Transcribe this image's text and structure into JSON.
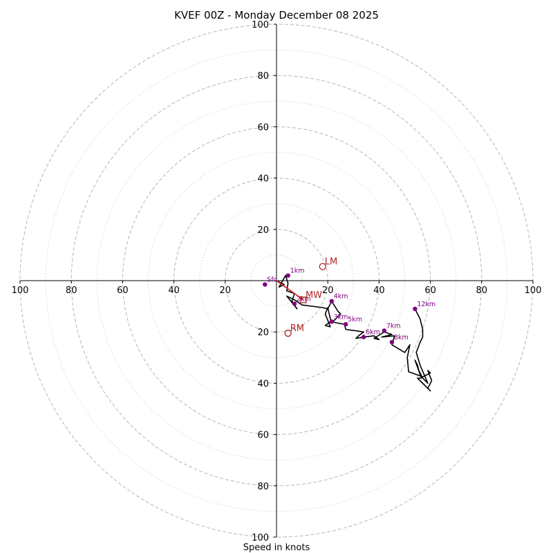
{
  "chart_data": {
    "type": "hodograph",
    "title": "KVEF 00Z - Monday December 08 2025",
    "xlabel": "Speed in knots",
    "xlim": [
      -100,
      100
    ],
    "ylim": [
      -100,
      100
    ],
    "major_rings": [
      20,
      40,
      60,
      80,
      100
    ],
    "minor_rings": [
      10,
      30,
      50,
      70,
      90
    ],
    "x_ticks": [
      {
        "value": -100,
        "label": "100"
      },
      {
        "value": -80,
        "label": "80"
      },
      {
        "value": -60,
        "label": "60"
      },
      {
        "value": -40,
        "label": "40"
      },
      {
        "value": -20,
        "label": "20"
      },
      {
        "value": 20,
        "label": "20"
      },
      {
        "value": 40,
        "label": "40"
      },
      {
        "value": 60,
        "label": "60"
      },
      {
        "value": 80,
        "label": "80"
      },
      {
        "value": 100,
        "label": "100"
      }
    ],
    "y_ticks": [
      {
        "value": 100,
        "label": "100"
      },
      {
        "value": 80,
        "label": "80"
      },
      {
        "value": 60,
        "label": "60"
      },
      {
        "value": 40,
        "label": "40"
      },
      {
        "value": 20,
        "label": "20"
      },
      {
        "value": -20,
        "label": "20"
      },
      {
        "value": -40,
        "label": "40"
      },
      {
        "value": -60,
        "label": "60"
      },
      {
        "value": -80,
        "label": "80"
      },
      {
        "value": -100,
        "label": "100"
      }
    ],
    "wind_trace": {
      "color": "#000000",
      "points": [
        [
          0,
          0
        ],
        [
          3,
          -1.5
        ],
        [
          1,
          -2.5
        ],
        [
          3.5,
          2
        ],
        [
          4.5,
          -1
        ],
        [
          4,
          -4
        ],
        [
          7,
          -5
        ],
        [
          6,
          -8
        ],
        [
          8,
          -11
        ],
        [
          4,
          -6
        ],
        [
          7,
          -7.5
        ],
        [
          10,
          -9.5
        ],
        [
          18,
          -10.5
        ],
        [
          20,
          -11
        ],
        [
          21.5,
          -8
        ],
        [
          24,
          -12
        ],
        [
          25,
          -13
        ],
        [
          24,
          -14
        ],
        [
          22,
          -16
        ],
        [
          21,
          -15
        ],
        [
          20,
          -10.5
        ],
        [
          19,
          -13
        ],
        [
          21,
          -18
        ],
        [
          19,
          -17.5
        ],
        [
          21,
          -16
        ],
        [
          26.5,
          -17
        ],
        [
          27,
          -19
        ],
        [
          34,
          -20
        ],
        [
          32,
          -21.5
        ],
        [
          31,
          -22.5
        ],
        [
          34,
          -22
        ],
        [
          38,
          -21.5
        ],
        [
          40,
          -23
        ],
        [
          38,
          -22.5
        ],
        [
          42,
          -20
        ],
        [
          45,
          -21
        ],
        [
          43,
          -21.5
        ],
        [
          41,
          -22
        ],
        [
          46,
          -21.5
        ],
        [
          45,
          -25
        ],
        [
          50,
          -28
        ],
        [
          52,
          -25
        ],
        [
          51,
          -30
        ],
        [
          51.5,
          -35.5
        ],
        [
          57,
          -37.5
        ],
        [
          60,
          -36
        ],
        [
          59,
          -35
        ],
        [
          60.5,
          -39
        ],
        [
          59,
          -42
        ],
        [
          60,
          -43
        ],
        [
          55,
          -38
        ],
        [
          56.5,
          -38
        ],
        [
          54,
          -31
        ],
        [
          55,
          -33
        ],
        [
          55.5,
          -35
        ],
        [
          57,
          -38
        ],
        [
          59,
          -40
        ],
        [
          56,
          -33
        ],
        [
          54.5,
          -28
        ],
        [
          56,
          -24
        ],
        [
          57,
          -22
        ],
        [
          57,
          -19
        ],
        [
          56,
          -15
        ],
        [
          54,
          -11
        ]
      ]
    },
    "mean_wind_arrow": {
      "color": "#d62728",
      "from": [
        0,
        0
      ],
      "to": [
        10.5,
        -7.5
      ]
    },
    "height_markers": [
      {
        "label": "Sfc",
        "u": -4.5,
        "v": -1.5
      },
      {
        "label": "1km",
        "u": 4.5,
        "v": 2
      },
      {
        "label": "2km",
        "u": 7,
        "v": -9
      },
      {
        "label": "3km",
        "u": 21.5,
        "v": -16
      },
      {
        "label": "4km",
        "u": 21.5,
        "v": -8
      },
      {
        "label": "5km",
        "u": 27,
        "v": -17
      },
      {
        "label": "6km",
        "u": 34,
        "v": -22
      },
      {
        "label": "7km",
        "u": 42,
        "v": -19.5
      },
      {
        "label": "8km",
        "u": 45,
        "v": -24
      },
      {
        "label": "12km",
        "u": 54,
        "v": -11
      }
    ],
    "storm_motion_markers": [
      {
        "label": "LM",
        "type": "circle",
        "u": 18,
        "v": 5.5
      },
      {
        "label": "MW",
        "type": "square",
        "u": 10.5,
        "v": -7.5
      },
      {
        "label": "RM",
        "type": "circle",
        "u": 4.5,
        "v": -20.5
      }
    ],
    "colors": {
      "height_marker": "#800080",
      "storm_motion": "#b22222",
      "major_ring": "#bbbbbb",
      "minor_ring": "#d0d0d0"
    }
  }
}
